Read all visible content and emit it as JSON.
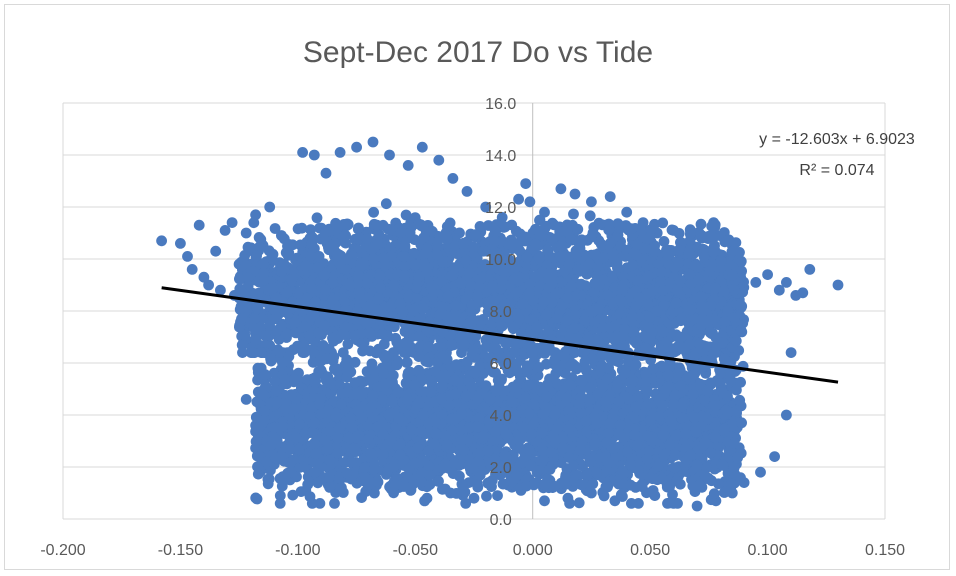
{
  "chart_data": {
    "type": "scatter",
    "title": "Sept-Dec 2017 Do vs Tide",
    "xlabel": "",
    "ylabel": "",
    "xlim": [
      -0.2,
      0.15
    ],
    "ylim": [
      0,
      16
    ],
    "x_ticks": [
      "-0.200",
      "-0.150",
      "-0.100",
      "-0.050",
      "0.000",
      "0.050",
      "0.100",
      "0.150"
    ],
    "y_ticks": [
      "0.0",
      "2.0",
      "4.0",
      "6.0",
      "8.0",
      "10.0",
      "12.0",
      "14.0",
      "16.0"
    ],
    "grid": "horizontal",
    "legend": "none",
    "marker_color": "#4a7abf",
    "trendline": {
      "slope": -12.603,
      "intercept": 6.9023,
      "x_range": [
        -0.158,
        0.13
      ],
      "color": "#000000",
      "equation_label": "y = -12.603x + 6.9023",
      "r2_label": "R² = 0.074"
    },
    "series": [
      {
        "values_note_points": [
          [
            -0.158,
            10.7
          ],
          [
            -0.15,
            10.6
          ],
          [
            -0.147,
            10.1
          ],
          [
            -0.142,
            11.3
          ],
          [
            -0.138,
            9.0
          ],
          [
            -0.133,
            8.8
          ],
          [
            -0.131,
            11.1
          ],
          [
            -0.127,
            8.6
          ],
          [
            -0.124,
            7.7
          ],
          [
            -0.12,
            8.2
          ],
          [
            -0.118,
            11.7
          ],
          [
            -0.112,
            12.0
          ],
          [
            -0.108,
            7.9
          ],
          [
            -0.104,
            5.9
          ],
          [
            -0.1,
            4.8
          ],
          [
            -0.098,
            14.1
          ],
          [
            -0.093,
            14.0
          ],
          [
            -0.088,
            13.3
          ],
          [
            -0.082,
            14.1
          ],
          [
            -0.075,
            14.3
          ],
          [
            -0.068,
            14.5
          ],
          [
            -0.061,
            14.0
          ],
          [
            -0.053,
            13.6
          ],
          [
            -0.047,
            14.3
          ],
          [
            -0.04,
            13.8
          ],
          [
            -0.034,
            13.1
          ],
          [
            -0.028,
            12.6
          ],
          [
            -0.02,
            12.0
          ],
          [
            -0.013,
            11.6
          ],
          [
            -0.006,
            12.3
          ],
          [
            -0.003,
            12.9
          ],
          [
            0.005,
            11.8
          ],
          [
            0.012,
            12.7
          ],
          [
            0.018,
            12.5
          ],
          [
            0.025,
            12.2
          ],
          [
            0.033,
            12.4
          ],
          [
            0.04,
            11.8
          ],
          [
            0.047,
            11.4
          ],
          [
            0.053,
            11.0
          ],
          [
            0.06,
            11.1
          ],
          [
            0.066,
            10.6
          ],
          [
            0.072,
            10.8
          ],
          [
            0.077,
            11.4
          ],
          [
            0.083,
            10.0
          ],
          [
            0.088,
            9.3
          ],
          [
            0.095,
            9.1
          ],
          [
            0.1,
            9.4
          ],
          [
            0.105,
            8.8
          ],
          [
            0.108,
            9.1
          ],
          [
            0.112,
            8.6
          ],
          [
            0.115,
            8.7
          ],
          [
            0.118,
            9.6
          ],
          [
            0.13,
            9.0
          ],
          [
            0.11,
            6.4
          ],
          [
            0.108,
            4.0
          ],
          [
            0.103,
            2.4
          ],
          [
            0.097,
            1.8
          ],
          [
            0.09,
            1.4
          ],
          [
            0.085,
            1.0
          ],
          [
            0.078,
            0.7
          ],
          [
            0.07,
            0.5
          ],
          [
            0.06,
            0.6
          ],
          [
            0.052,
            0.9
          ],
          [
            0.045,
            0.6
          ],
          [
            0.035,
            0.7
          ],
          [
            0.025,
            1.0
          ],
          [
            0.015,
            0.8
          ],
          [
            0.005,
            0.7
          ],
          [
            -0.005,
            1.1
          ],
          [
            -0.015,
            0.9
          ],
          [
            -0.025,
            0.8
          ],
          [
            -0.035,
            1.0
          ],
          [
            -0.045,
            0.8
          ],
          [
            -0.052,
            1.1
          ],
          [
            -0.06,
            1.3
          ],
          [
            -0.07,
            1.6
          ],
          [
            -0.082,
            1.2
          ],
          [
            -0.09,
            2.0
          ],
          [
            -0.1,
            2.5
          ],
          [
            -0.11,
            3.0
          ],
          [
            -0.118,
            3.6
          ],
          [
            -0.122,
            4.6
          ],
          [
            -0.115,
            5.4
          ],
          [
            -0.108,
            6.2
          ],
          [
            -0.125,
            9.8
          ],
          [
            -0.135,
            10.3
          ],
          [
            -0.145,
            9.6
          ],
          [
            -0.14,
            9.3
          ],
          [
            -0.128,
            11.4
          ],
          [
            -0.122,
            11.0
          ]
        ],
        "values": []
      }
    ]
  }
}
